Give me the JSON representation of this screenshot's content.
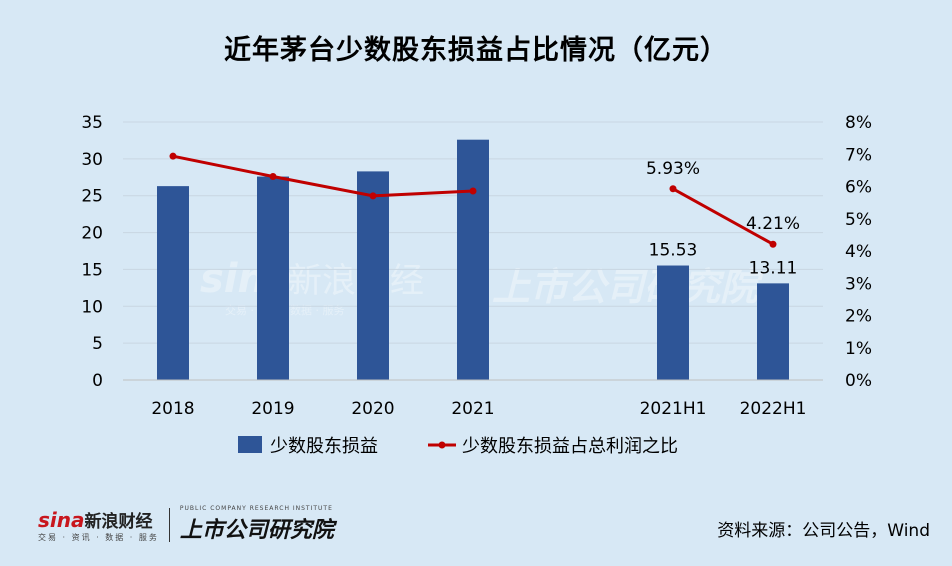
{
  "title": "近年茅台少数股东损益占比情况（亿元）",
  "source": "资料来源：公司公告，Wind",
  "watermark": {
    "sina_word": "sina",
    "sina_cn": "新浪财经",
    "sina_sub": "交易 · 资讯 · 数据 · 服务",
    "institute_cn": "上市公司研究院",
    "institute_en": "PUBLIC COMPANY RESEARCH INSTITUTE"
  },
  "colors": {
    "bar": "#2e5597",
    "line": "#c00000",
    "background": "#d7e8f5",
    "grid": "#c8d6e2"
  },
  "chart_data": {
    "type": "bar+line",
    "categories": [
      "2018",
      "2019",
      "2020",
      "2021",
      "",
      "2021H1",
      "2022H1"
    ],
    "series": [
      {
        "name": "少数股东损益",
        "type": "bar",
        "axis": "left",
        "values": [
          26.3,
          27.6,
          28.3,
          32.6,
          null,
          15.53,
          13.11
        ],
        "data_labels": [
          "",
          "",
          "",
          "",
          "",
          "15.53",
          "13.11"
        ]
      },
      {
        "name": "少数股东损益占总利润之比",
        "type": "line",
        "axis": "right",
        "values": [
          0.0694,
          0.0631,
          0.0571,
          0.0586,
          null,
          0.0593,
          0.0421
        ],
        "data_labels": [
          "",
          "",
          "",
          "",
          "",
          "5.93%",
          "4.21%"
        ]
      }
    ],
    "y_left": {
      "min": 0,
      "max": 35,
      "ticks": [
        "0",
        "5",
        "10",
        "15",
        "20",
        "25",
        "30",
        "35"
      ]
    },
    "y_right": {
      "min": 0,
      "max": 0.08,
      "ticks": [
        "0%",
        "1%",
        "2%",
        "3%",
        "4%",
        "5%",
        "6%",
        "7%",
        "8%"
      ]
    },
    "grid": true,
    "legend": "bottom"
  }
}
